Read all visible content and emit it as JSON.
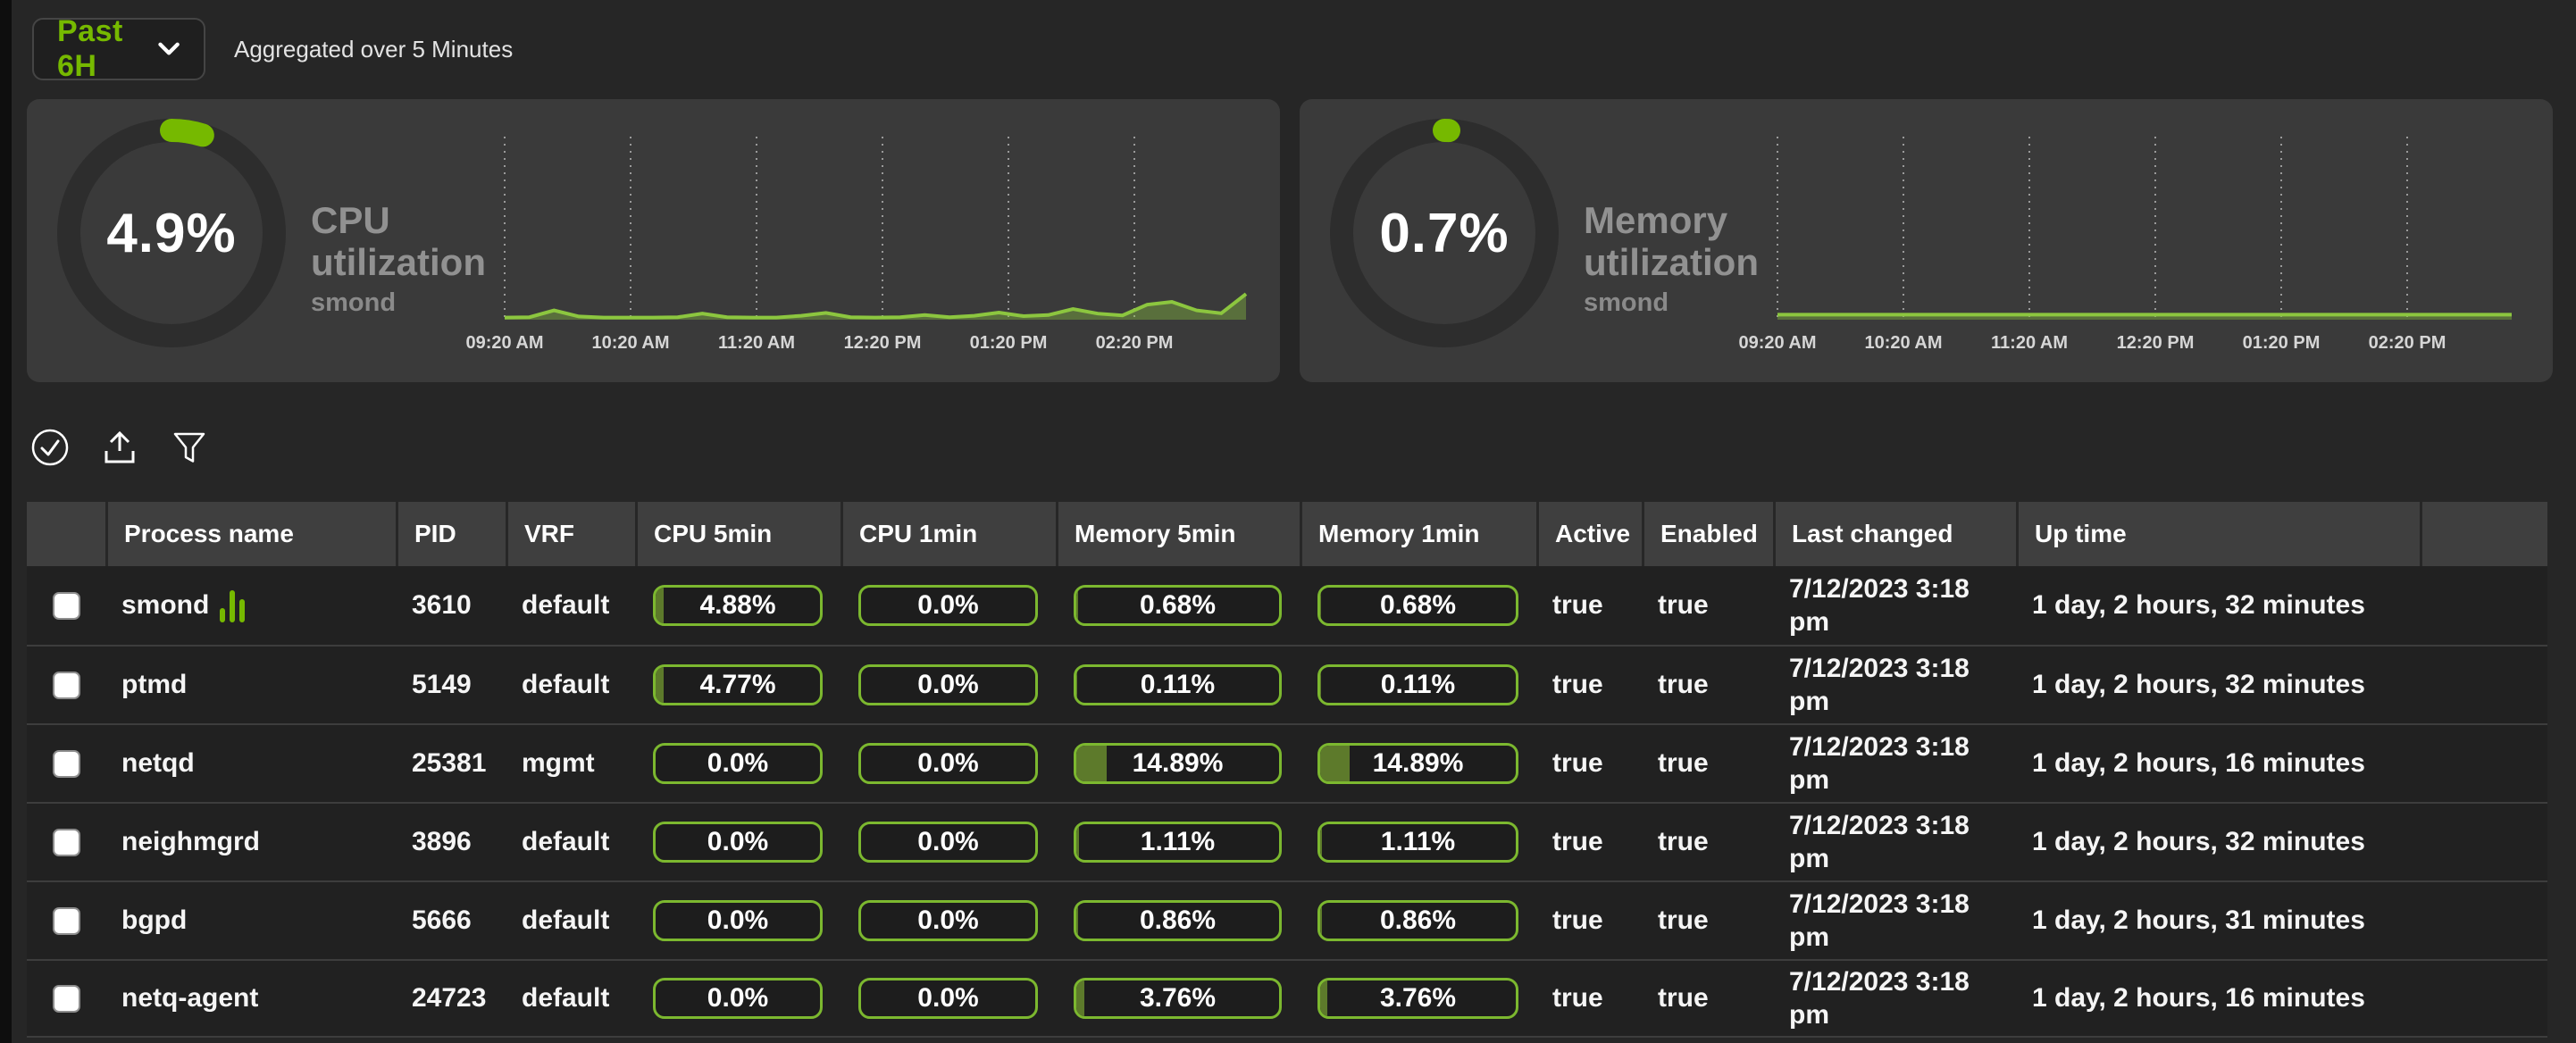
{
  "colors": {
    "accent": "#76b900",
    "spark_line": "#8cc63f",
    "spark_fill": "rgba(140,198,63,0.38)",
    "pill_border": "#7cb82f",
    "pill_fill": "#5d7a2b",
    "donut_track": "#2d2d2d"
  },
  "header": {
    "time_range_label": "Past 6H",
    "aggregation_note": "Aggregated over 5 Minutes"
  },
  "cards": [
    {
      "title1": "CPU",
      "title2": "utilization",
      "subtitle": "smond",
      "percent_label": "4.9%",
      "percent": 4.9
    },
    {
      "title1": "Memory",
      "title2": "utilization",
      "subtitle": "smond",
      "percent_label": "0.7%",
      "percent": 0.7
    }
  ],
  "toolbar": {
    "icons": [
      "check-circle",
      "export",
      "filter"
    ]
  },
  "table": {
    "columns": [
      "",
      "Process name",
      "PID",
      "VRF",
      "CPU 5min",
      "CPU 1min",
      "Memory 5min",
      "Memory 1min",
      "Active",
      "Enabled",
      "Last changed",
      "Up time",
      ""
    ],
    "rows": [
      {
        "process": "smond",
        "has_chart_icon": true,
        "pid": "3610",
        "vrf": "default",
        "cpu5": {
          "label": "4.88%",
          "value": 4.88
        },
        "cpu1": {
          "label": "0.0%",
          "value": 0
        },
        "mem5": {
          "label": "0.68%",
          "value": 0.68
        },
        "mem1": {
          "label": "0.68%",
          "value": 0.68
        },
        "active": "true",
        "enabled": "true",
        "last_changed": "7/12/2023 3:18 pm",
        "up_time": "1 day, 2 hours, 32 minutes"
      },
      {
        "process": "ptmd",
        "has_chart_icon": false,
        "pid": "5149",
        "vrf": "default",
        "cpu5": {
          "label": "4.77%",
          "value": 4.77
        },
        "cpu1": {
          "label": "0.0%",
          "value": 0
        },
        "mem5": {
          "label": "0.11%",
          "value": 0.11
        },
        "mem1": {
          "label": "0.11%",
          "value": 0.11
        },
        "active": "true",
        "enabled": "true",
        "last_changed": "7/12/2023 3:18 pm",
        "up_time": "1 day, 2 hours, 32 minutes"
      },
      {
        "process": "netqd",
        "has_chart_icon": false,
        "pid": "25381",
        "vrf": "mgmt",
        "cpu5": {
          "label": "0.0%",
          "value": 0
        },
        "cpu1": {
          "label": "0.0%",
          "value": 0
        },
        "mem5": {
          "label": "14.89%",
          "value": 14.89
        },
        "mem1": {
          "label": "14.89%",
          "value": 14.89
        },
        "active": "true",
        "enabled": "true",
        "last_changed": "7/12/2023 3:18 pm",
        "up_time": "1 day, 2 hours, 16 minutes"
      },
      {
        "process": "neighmgrd",
        "has_chart_icon": false,
        "pid": "3896",
        "vrf": "default",
        "cpu5": {
          "label": "0.0%",
          "value": 0
        },
        "cpu1": {
          "label": "0.0%",
          "value": 0
        },
        "mem5": {
          "label": "1.11%",
          "value": 1.11
        },
        "mem1": {
          "label": "1.11%",
          "value": 1.11
        },
        "active": "true",
        "enabled": "true",
        "last_changed": "7/12/2023 3:18 pm",
        "up_time": "1 day, 2 hours, 32 minutes"
      },
      {
        "process": "bgpd",
        "has_chart_icon": false,
        "pid": "5666",
        "vrf": "default",
        "cpu5": {
          "label": "0.0%",
          "value": 0
        },
        "cpu1": {
          "label": "0.0%",
          "value": 0
        },
        "mem5": {
          "label": "0.86%",
          "value": 0.86
        },
        "mem1": {
          "label": "0.86%",
          "value": 0.86
        },
        "active": "true",
        "enabled": "true",
        "last_changed": "7/12/2023 3:18 pm",
        "up_time": "1 day, 2 hours, 31 minutes"
      },
      {
        "process": "netq-agent",
        "has_chart_icon": false,
        "pid": "24723",
        "vrf": "default",
        "cpu5": {
          "label": "0.0%",
          "value": 0
        },
        "cpu1": {
          "label": "0.0%",
          "value": 0
        },
        "mem5": {
          "label": "3.76%",
          "value": 3.76
        },
        "mem1": {
          "label": "3.76%",
          "value": 3.76
        },
        "active": "true",
        "enabled": "true",
        "last_changed": "7/12/2023 3:18 pm",
        "up_time": "1 day, 2 hours, 16 minutes"
      }
    ]
  },
  "chart_data": [
    {
      "type": "area",
      "title": "CPU utilization",
      "entity": "smond",
      "donut_percent": 4.9,
      "unit": "%",
      "x_ticks": [
        "09:20 AM",
        "10:20 AM",
        "11:20 AM",
        "12:20 PM",
        "01:20 PM",
        "02:20 PM"
      ],
      "series": [
        {
          "name": "CPU utilization %",
          "values": [
            0.3,
            0.35,
            1.3,
            0.45,
            0.3,
            0.3,
            0.3,
            0.35,
            0.85,
            0.35,
            0.3,
            0.3,
            0.55,
            0.95,
            0.35,
            0.3,
            0.35,
            0.65,
            0.35,
            0.55,
            1.0,
            0.5,
            0.65,
            1.5,
            0.85,
            0.6,
            2.1,
            2.5,
            1.3,
            0.9,
            3.6
          ]
        }
      ],
      "ylim": [
        0,
        25
      ],
      "grid": "vertical-dotted",
      "legend": "none"
    },
    {
      "type": "area",
      "title": "Memory utilization",
      "entity": "smond",
      "donut_percent": 0.7,
      "unit": "%",
      "x_ticks": [
        "09:20 AM",
        "10:20 AM",
        "11:20 AM",
        "12:20 PM",
        "01:20 PM",
        "02:20 PM"
      ],
      "series": [
        {
          "name": "Memory utilization %",
          "values": [
            0.7,
            0.7
          ]
        }
      ],
      "ylim": [
        0,
        25
      ],
      "grid": "vertical-dotted",
      "legend": "none"
    }
  ]
}
